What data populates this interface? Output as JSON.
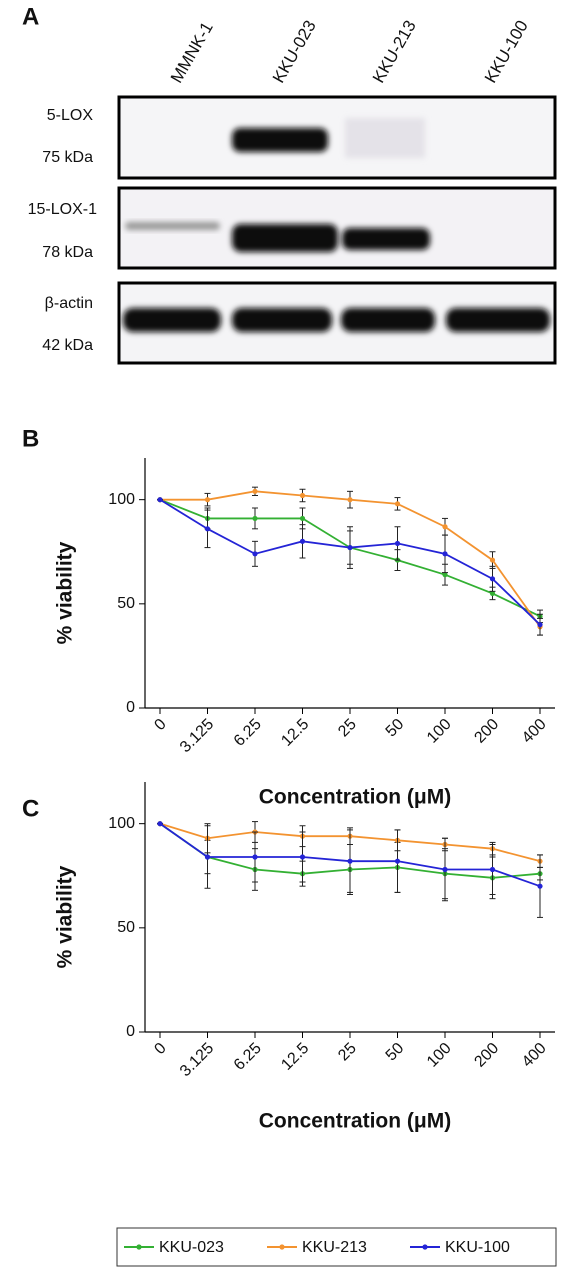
{
  "blot": {
    "label": "A",
    "lanes": [
      "MMNK-1",
      "KKU-023",
      "KKU-213",
      "KKU-100"
    ],
    "rows": [
      {
        "name": "5-LOX",
        "size": "75 kDa"
      },
      {
        "name": "15-LOX-1",
        "size": "78 kDa"
      },
      {
        "name": "β-actin",
        "size": "42 kDa"
      }
    ]
  },
  "chart_data": [
    {
      "type": "line",
      "label": "B",
      "x_label": "Concentration (μM)",
      "y_label": "% viability",
      "categories": [
        "0",
        "3.125",
        "6.25",
        "12.5",
        "25",
        "50",
        "100",
        "200",
        "400"
      ],
      "ylim": [
        0,
        120
      ],
      "yticks": [
        0,
        50,
        100
      ],
      "series": [
        {
          "color": "#33b033",
          "values": [
            100,
            91,
            91,
            91,
            77,
            71,
            64,
            55,
            44
          ],
          "errors": [
            0,
            5,
            5,
            5,
            10,
            5,
            5,
            3,
            3
          ]
        },
        {
          "color": "#f39330",
          "values": [
            100,
            100,
            104,
            102,
            100,
            98,
            87,
            71,
            39
          ],
          "errors": [
            0,
            3,
            2,
            3,
            4,
            3,
            4,
            4,
            4
          ]
        },
        {
          "color": "#2424d6",
          "values": [
            100,
            86,
            74,
            80,
            77,
            79,
            74,
            62,
            40
          ],
          "errors": [
            0,
            9,
            6,
            8,
            8,
            8,
            9,
            6,
            5
          ]
        }
      ]
    },
    {
      "type": "line",
      "label": "C",
      "x_label": "Concentration (μM)",
      "y_label": "% viability",
      "categories": [
        "0",
        "3.125",
        "6.25",
        "12.5",
        "25",
        "50",
        "100",
        "200",
        "400"
      ],
      "ylim": [
        0,
        120
      ],
      "yticks": [
        0,
        50,
        100
      ],
      "series": [
        {
          "name": "KKU-023",
          "color": "#33b033",
          "values": [
            100,
            84,
            78,
            76,
            78,
            79,
            76,
            74,
            76
          ],
          "errors": [
            0,
            8,
            10,
            6,
            12,
            12,
            12,
            10,
            3
          ]
        },
        {
          "name": "KKU-213",
          "color": "#f39330",
          "values": [
            100,
            93,
            96,
            94,
            94,
            92,
            90,
            88,
            82
          ],
          "errors": [
            0,
            7,
            5,
            5,
            4,
            5,
            3,
            3,
            3
          ]
        },
        {
          "name": "KKU-100",
          "color": "#2424d6",
          "values": [
            100,
            84,
            84,
            84,
            82,
            82,
            78,
            78,
            70
          ],
          "errors": [
            0,
            15,
            12,
            12,
            15,
            15,
            15,
            12,
            15
          ]
        }
      ]
    }
  ]
}
